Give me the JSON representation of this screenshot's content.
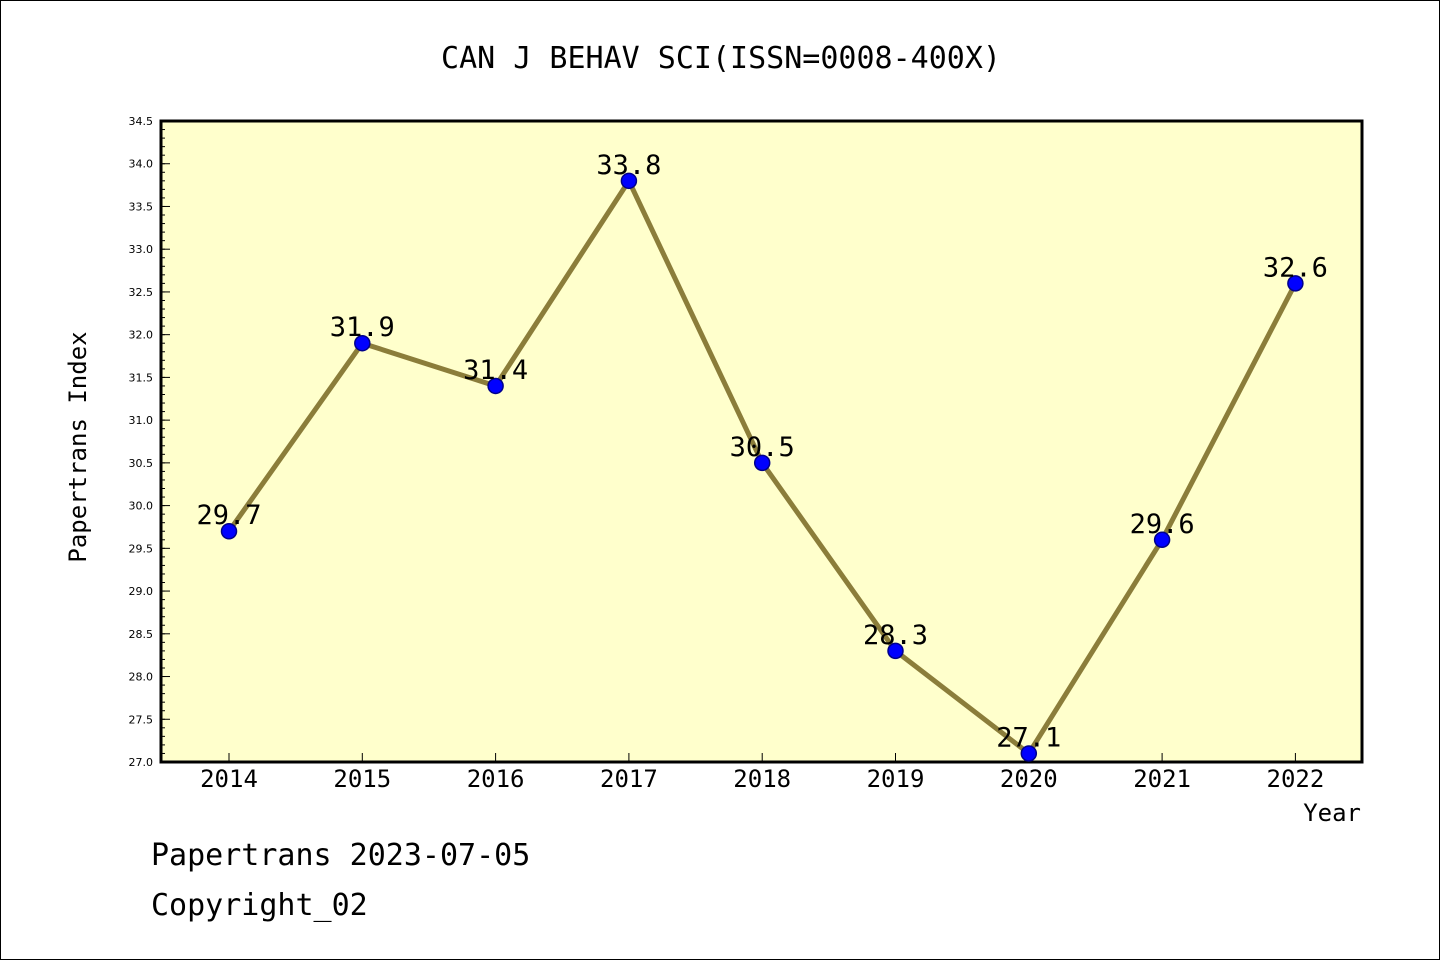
{
  "chart_data": {
    "type": "line",
    "title": "CAN J BEHAV SCI(ISSN=0008-400X)",
    "xlabel": "Year",
    "ylabel": "Papertrans Index",
    "x": [
      "2014",
      "2015",
      "2016",
      "2017",
      "2018",
      "2019",
      "2020",
      "2021",
      "2022"
    ],
    "series": [
      {
        "values": [
          29.7,
          31.9,
          31.4,
          33.8,
          30.5,
          28.3,
          27.1,
          29.6,
          32.6
        ],
        "data_labels": [
          "29.7",
          "31.9",
          "31.4",
          "33.8",
          "30.5",
          "28.3",
          "27.1",
          "29.6",
          "32.6"
        ]
      }
    ],
    "ylim": [
      27.0,
      34.5
    ],
    "yticks": [
      "27.0",
      "27.5",
      "28.0",
      "28.5",
      "29.0",
      "29.5",
      "30.0",
      "30.5",
      "31.0",
      "31.5",
      "32.0",
      "32.5",
      "33.0",
      "33.5",
      "34.0",
      "34.5"
    ],
    "grid": false,
    "colors": {
      "line": "#8b7d3a",
      "marker": "#0000ff",
      "plot_background": "#ffffcc",
      "frame": "#000000"
    }
  },
  "footer": {
    "line1": "Papertrans 2023-07-05",
    "line2": "Copyright_02"
  }
}
